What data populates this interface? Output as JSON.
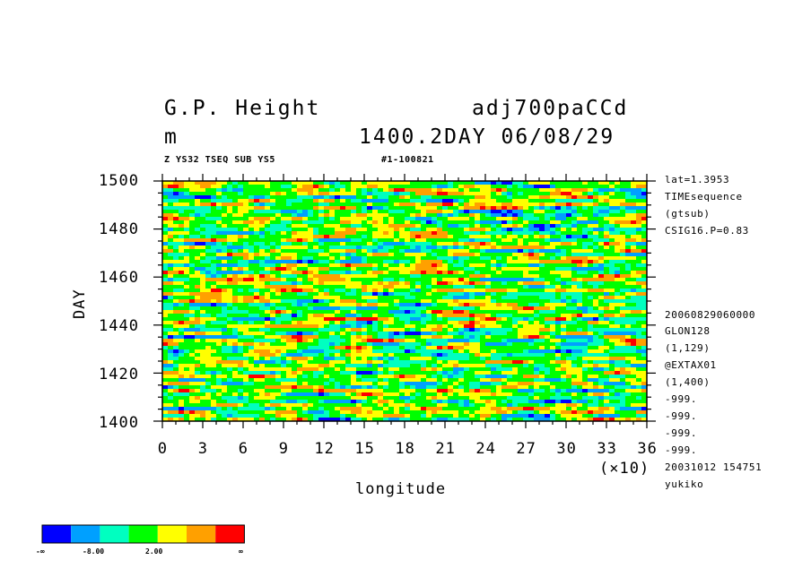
{
  "header": {
    "var_name": "G.P. Height",
    "dataset": "adj700paCCd",
    "units": "m",
    "time_label": "1400.2DAY 06/08/29",
    "subtitle_left": "Z YS32 TSEQ SUB YS5",
    "subtitle_right": "#1-100821"
  },
  "sidebar": {
    "lines": [
      "lat=1.3953",
      "TIMEsequence",
      "(gtsub)",
      "CSIG16.P=0.83",
      "20060829060000",
      "GLON128",
      "(1,129)",
      "@EXTAX01",
      "(1,400)",
      "-999.",
      "-999.",
      "-999.",
      "-999.",
      "20031012 154751",
      "yukiko"
    ]
  },
  "axes": {
    "xlabel": "longitude",
    "ylabel": "DAY",
    "x_multiplier": "(×10)",
    "xticks": [
      "0",
      "3",
      "6",
      "9",
      "12",
      "15",
      "18",
      "21",
      "24",
      "27",
      "30",
      "33",
      "36"
    ],
    "yticks": [
      "1400",
      "1420",
      "1440",
      "1460",
      "1480",
      "1500"
    ]
  },
  "colorbar": {
    "colors": [
      "#0000ff",
      "#00a0ff",
      "#00ffc0",
      "#00ff00",
      "#ffff00",
      "#ffa000",
      "#ff0000"
    ],
    "labels": [
      "-∞",
      "-8.00",
      "2.00",
      "∞"
    ]
  },
  "chart_data": {
    "type": "heatmap",
    "title": "G.P. Height",
    "xlabel": "longitude",
    "ylabel": "DAY",
    "xlim": [
      0,
      360
    ],
    "ylim": [
      1400,
      1500
    ],
    "x_unit_multiplier": 10,
    "color_levels": [
      "-∞",
      "-8.00",
      "2.00",
      "∞"
    ],
    "palette": [
      "#0000ff",
      "#00a0ff",
      "#00ffc0",
      "#00ff00",
      "#ffff00",
      "#ffa000",
      "#ff0000"
    ]
  }
}
